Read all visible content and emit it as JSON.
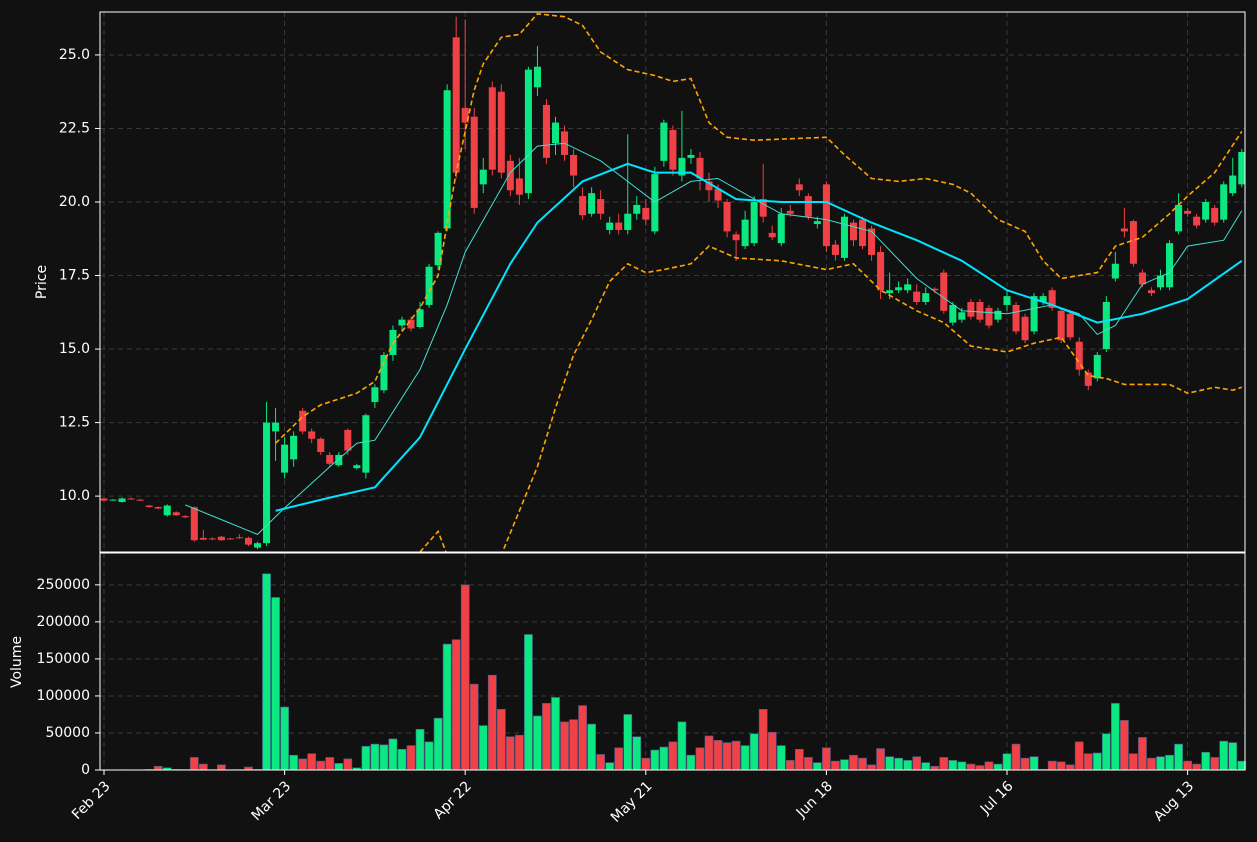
{
  "chart_data": {
    "type": "candlestick",
    "price_label": "Price",
    "volume_label": "Volume",
    "up_color": "#0be881",
    "down_color": "#ef4146",
    "grid": true,
    "categories": [
      "Feb 23",
      null,
      null,
      null,
      null,
      null,
      null,
      null,
      null,
      null,
      null,
      null,
      null,
      null,
      null,
      null,
      null,
      null,
      null,
      null,
      "Mar 23",
      null,
      null,
      null,
      null,
      null,
      null,
      null,
      null,
      null,
      null,
      null,
      null,
      null,
      null,
      null,
      null,
      null,
      null,
      null,
      "Apr 22",
      null,
      null,
      null,
      null,
      null,
      null,
      null,
      null,
      null,
      null,
      null,
      null,
      null,
      null,
      null,
      null,
      null,
      null,
      null,
      "May 21",
      null,
      null,
      null,
      null,
      null,
      null,
      null,
      null,
      null,
      null,
      null,
      null,
      null,
      null,
      null,
      null,
      null,
      null,
      null,
      "Jun 18",
      null,
      null,
      null,
      null,
      null,
      null,
      null,
      null,
      null,
      null,
      null,
      null,
      null,
      null,
      null,
      null,
      null,
      null,
      null,
      "Jul 16",
      null,
      null,
      null,
      null,
      null,
      null,
      null,
      null,
      null,
      null,
      null,
      null,
      null,
      null,
      null,
      null,
      null,
      null,
      null,
      "Aug 13",
      null,
      null,
      null,
      null,
      null,
      null
    ],
    "open": [
      9.92,
      9.88,
      9.8,
      9.92,
      9.88,
      9.68,
      9.63,
      9.35,
      9.45,
      9.32,
      9.62,
      8.58,
      8.56,
      8.62,
      8.56,
      8.6,
      8.58,
      8.25,
      8.4,
      12.2,
      10.8,
      11.25,
      12.9,
      12.2,
      11.95,
      11.4,
      11.05,
      12.25,
      10.95,
      10.8,
      13.2,
      13.6,
      14.8,
      15.8,
      16.0,
      15.75,
      16.5,
      17.85,
      19.1,
      25.6,
      23.2,
      22.9,
      20.6,
      23.9,
      23.75,
      21.4,
      20.8,
      20.3,
      23.9,
      23.3,
      22.0,
      22.4,
      21.6,
      20.2,
      19.6,
      20.1,
      19.05,
      19.3,
      19.05,
      19.6,
      19.8,
      19.0,
      21.4,
      22.45,
      20.9,
      21.5,
      21.5,
      20.7,
      20.45,
      20.0,
      18.9,
      18.5,
      18.6,
      20.1,
      18.95,
      18.6,
      19.7,
      20.6,
      20.2,
      19.25,
      20.6,
      18.55,
      18.1,
      19.3,
      19.4,
      19.1,
      18.3,
      16.9,
      17.0,
      17.0,
      16.95,
      16.6,
      17.05,
      17.6,
      15.9,
      16.0,
      16.6,
      16.6,
      16.4,
      16.0,
      16.5,
      16.5,
      16.1,
      15.6,
      16.6,
      17.0,
      16.3,
      16.2,
      15.25,
      14.2,
      14.0,
      15.0,
      17.4,
      19.1,
      19.35,
      17.6,
      17.0,
      17.1,
      17.1,
      19.0,
      19.7,
      19.5,
      19.4,
      19.8,
      19.4,
      20.3,
      20.6
    ],
    "high": [
      9.95,
      9.9,
      9.95,
      9.95,
      9.9,
      9.7,
      9.65,
      9.72,
      9.48,
      9.35,
      9.65,
      8.85,
      8.6,
      8.65,
      8.58,
      8.7,
      8.62,
      8.45,
      13.2,
      13.0,
      12.0,
      12.2,
      13.0,
      12.3,
      12.0,
      11.5,
      11.5,
      12.3,
      11.1,
      12.8,
      13.8,
      14.9,
      15.8,
      16.1,
      16.1,
      16.6,
      17.9,
      19.0,
      24.0,
      26.3,
      26.2,
      23.2,
      21.5,
      24.1,
      24.0,
      21.6,
      21.5,
      24.6,
      25.3,
      23.5,
      22.9,
      22.6,
      21.8,
      20.5,
      20.5,
      20.4,
      19.5,
      19.6,
      22.3,
      20.2,
      20.1,
      21.2,
      22.8,
      22.6,
      23.1,
      21.8,
      21.7,
      21.0,
      20.6,
      20.1,
      19.0,
      19.7,
      20.2,
      21.3,
      19.2,
      19.8,
      19.9,
      20.8,
      20.3,
      19.5,
      20.7,
      18.7,
      19.6,
      19.4,
      19.5,
      19.2,
      18.5,
      17.6,
      17.3,
      17.4,
      17.2,
      17.1,
      17.1,
      17.7,
      16.6,
      16.4,
      16.7,
      16.7,
      16.5,
      16.4,
      17.0,
      16.6,
      16.2,
      16.9,
      16.9,
      17.1,
      16.4,
      16.3,
      15.4,
      14.3,
      14.9,
      16.8,
      18.3,
      19.8,
      19.4,
      17.7,
      17.1,
      17.7,
      18.7,
      20.3,
      19.8,
      19.6,
      20.1,
      19.9,
      20.7,
      21.5,
      21.8
    ],
    "low": [
      9.82,
      9.86,
      9.78,
      9.88,
      9.84,
      9.6,
      9.55,
      9.3,
      9.33,
      9.25,
      8.45,
      8.5,
      8.5,
      8.48,
      8.52,
      8.55,
      8.3,
      8.2,
      8.3,
      11.2,
      10.6,
      11.0,
      12.1,
      11.8,
      11.4,
      11.0,
      11.0,
      11.4,
      10.9,
      10.6,
      13.0,
      13.5,
      14.6,
      15.6,
      15.6,
      15.7,
      16.4,
      17.7,
      19.0,
      20.8,
      21.8,
      19.6,
      20.3,
      20.9,
      20.8,
      20.2,
      19.9,
      20.1,
      23.6,
      21.3,
      21.6,
      21.4,
      20.5,
      19.4,
      19.5,
      19.4,
      18.9,
      18.9,
      18.9,
      19.4,
      19.2,
      18.9,
      21.2,
      20.9,
      20.7,
      21.3,
      20.4,
      20.0,
      19.8,
      18.8,
      18.0,
      18.4,
      18.5,
      19.3,
      18.7,
      18.5,
      19.5,
      20.2,
      19.4,
      19.1,
      18.3,
      18.0,
      18.0,
      18.5,
      18.4,
      18.0,
      16.7,
      16.7,
      16.9,
      16.9,
      16.5,
      16.5,
      16.9,
      16.2,
      15.8,
      15.9,
      16.0,
      15.9,
      15.7,
      15.9,
      16.3,
      15.5,
      15.2,
      15.5,
      16.5,
      16.3,
      15.2,
      15.3,
      14.1,
      13.6,
      13.9,
      14.9,
      17.3,
      18.8,
      17.8,
      17.1,
      16.8,
      17.0,
      17.0,
      18.9,
      19.5,
      19.1,
      19.3,
      19.2,
      19.3,
      20.2,
      20.5
    ],
    "close": [
      9.85,
      9.88,
      9.92,
      9.9,
      9.86,
      9.63,
      9.58,
      9.68,
      9.35,
      9.28,
      8.5,
      8.52,
      8.54,
      8.5,
      8.54,
      8.58,
      8.35,
      8.4,
      12.5,
      12.5,
      11.75,
      12.05,
      12.2,
      11.95,
      11.5,
      11.1,
      11.4,
      11.55,
      11.05,
      12.75,
      13.7,
      14.8,
      15.65,
      16.0,
      15.7,
      16.35,
      17.8,
      18.95,
      23.8,
      21.0,
      22.7,
      19.8,
      21.1,
      21.1,
      21.0,
      20.4,
      20.25,
      24.5,
      24.6,
      21.5,
      22.7,
      21.6,
      20.9,
      19.55,
      20.3,
      19.6,
      19.3,
      19.05,
      19.6,
      19.9,
      19.4,
      20.95,
      22.7,
      21.1,
      21.5,
      21.6,
      20.8,
      20.4,
      20.05,
      19.0,
      18.7,
      19.4,
      20.0,
      19.5,
      18.8,
      19.6,
      19.6,
      20.4,
      19.5,
      19.35,
      18.5,
      18.2,
      19.5,
      18.7,
      18.5,
      18.2,
      17.0,
      17.0,
      17.1,
      17.2,
      16.6,
      16.9,
      17.0,
      16.3,
      16.5,
      16.25,
      16.1,
      16.0,
      15.8,
      16.3,
      16.8,
      15.6,
      15.3,
      16.8,
      16.8,
      16.4,
      15.3,
      15.4,
      14.3,
      13.75,
      14.8,
      16.6,
      17.9,
      19.0,
      17.9,
      17.2,
      16.9,
      17.5,
      18.6,
      19.9,
      19.6,
      19.2,
      20.0,
      19.3,
      20.6,
      20.9,
      21.7
    ],
    "volume": [
      300,
      200,
      400,
      300,
      200,
      800,
      5000,
      3000,
      900,
      700,
      17000,
      8000,
      600,
      7000,
      500,
      600,
      4000,
      800,
      265000,
      233000,
      85000,
      20000,
      15000,
      22000,
      12000,
      17000,
      9000,
      15000,
      3000,
      32000,
      35000,
      34000,
      42000,
      28000,
      33000,
      55000,
      38000,
      70000,
      170000,
      176000,
      250000,
      116000,
      60000,
      128000,
      82000,
      45000,
      47000,
      183000,
      73000,
      90000,
      98000,
      65000,
      68000,
      87000,
      62000,
      21000,
      10000,
      30000,
      75000,
      45000,
      16000,
      27000,
      31000,
      38000,
      65000,
      20000,
      30000,
      46000,
      40000,
      37000,
      39000,
      33000,
      49000,
      82000,
      51000,
      33000,
      13000,
      28000,
      17000,
      10000,
      30000,
      12000,
      14000,
      20000,
      16000,
      7000,
      29000,
      18000,
      16000,
      13000,
      18000,
      10000,
      5000,
      17000,
      13000,
      11000,
      8000,
      6000,
      11000,
      8000,
      22000,
      35000,
      16000,
      18000,
      1000,
      12000,
      11000,
      7000,
      38000,
      22000,
      23000,
      49000,
      90000,
      67000,
      22000,
      44000,
      16000,
      18000,
      20000,
      35000,
      12000,
      8000,
      24000,
      17000,
      39000,
      37000,
      12000
    ],
    "overlays": [
      {
        "color": "#40e0d0",
        "linestyle": "solid",
        "x": [
          9,
          13,
          17,
          20,
          25,
          28,
          30,
          35,
          38,
          40,
          45,
          48,
          51,
          55,
          58,
          61,
          65,
          68,
          72,
          75,
          80,
          85,
          90,
          95,
          100,
          105,
          108,
          110,
          112,
          115,
          118,
          120,
          124,
          126
        ],
        "values": [
          9.7,
          9.2,
          8.7,
          9.6,
          11.0,
          11.8,
          11.9,
          14.3,
          16.5,
          18.3,
          21.0,
          21.9,
          22.0,
          21.4,
          20.7,
          20.0,
          20.7,
          20.8,
          20.1,
          19.6,
          19.4,
          19.0,
          17.4,
          16.3,
          16.2,
          16.5,
          16.2,
          15.5,
          15.8,
          17.2,
          17.6,
          18.5,
          18.7,
          19.7
        ]
      },
      {
        "color": "#00e5ff",
        "linestyle": "solid",
        "x": [
          19,
          25,
          30,
          35,
          40,
          45,
          48,
          53,
          58,
          61,
          65,
          70,
          75,
          80,
          85,
          90,
          95,
          100,
          105,
          110,
          115,
          120,
          126
        ],
        "values": [
          9.5,
          9.95,
          10.3,
          12.0,
          15.0,
          17.9,
          19.3,
          20.7,
          21.3,
          21.0,
          21.0,
          20.1,
          20.0,
          20.0,
          19.3,
          18.7,
          18.0,
          17.0,
          16.5,
          15.9,
          16.2,
          16.7,
          18.0
        ]
      },
      {
        "color": "#ffa500",
        "linestyle": "dashed",
        "x": [
          19,
          22,
          24,
          28,
          30,
          32,
          35,
          37,
          39,
          41,
          42,
          44,
          46,
          48,
          51,
          53,
          55,
          58,
          61,
          63,
          65,
          67,
          69,
          72,
          80,
          82,
          85,
          88,
          91,
          94,
          96,
          99,
          102,
          104,
          106,
          108,
          110,
          112,
          115,
          118,
          120,
          123,
          126
        ],
        "values": [
          11.8,
          12.7,
          13.1,
          13.5,
          13.9,
          15.2,
          16.4,
          17.5,
          21.0,
          23.8,
          24.7,
          25.6,
          25.7,
          26.4,
          26.3,
          26.0,
          25.1,
          24.5,
          24.3,
          24.1,
          24.2,
          22.7,
          22.2,
          22.1,
          22.2,
          21.6,
          20.8,
          20.7,
          20.8,
          20.6,
          20.3,
          19.4,
          19.0,
          18.0,
          17.4,
          17.5,
          17.6,
          18.5,
          18.8,
          19.6,
          20.2,
          21.0,
          22.4
        ]
      },
      {
        "color": "#ffa500",
        "linestyle": "dashed",
        "x": [
          19,
          25,
          30,
          35,
          37,
          38,
          40,
          42,
          44,
          46,
          48,
          50,
          52,
          54,
          56,
          58,
          60,
          62,
          65,
          67,
          70,
          75,
          80,
          83,
          86,
          90,
          93,
          96,
          100,
          103,
          106,
          109,
          111,
          113,
          116,
          118,
          120,
          123,
          125,
          126
        ],
        "values": [
          6.0,
          6.3,
          7.0,
          8.1,
          8.8,
          8.0,
          6.0,
          6.5,
          8.0,
          9.5,
          11.0,
          13.0,
          14.8,
          16.0,
          17.3,
          17.9,
          17.6,
          17.7,
          17.9,
          18.5,
          18.1,
          18.0,
          17.7,
          17.9,
          17.0,
          16.3,
          15.9,
          15.1,
          14.9,
          15.2,
          15.4,
          14.1,
          14.0,
          13.8,
          13.8,
          13.8,
          13.5,
          13.7,
          13.6,
          13.7
        ]
      }
    ],
    "ylim": [
      8.1,
      26.46
    ],
    "yticks": [
      {
        "value": 10,
        "label": "10.0"
      },
      12.5,
      {
        "value": 15,
        "label": "15.0"
      },
      17.5,
      {
        "value": 20,
        "label": "20.0"
      },
      22.5,
      {
        "value": 25,
        "label": "25.0"
      }
    ],
    "volume_ylim": [
      0,
      293000
    ],
    "volume_yticks": [
      0,
      50000,
      100000,
      150000,
      200000,
      250000
    ]
  }
}
